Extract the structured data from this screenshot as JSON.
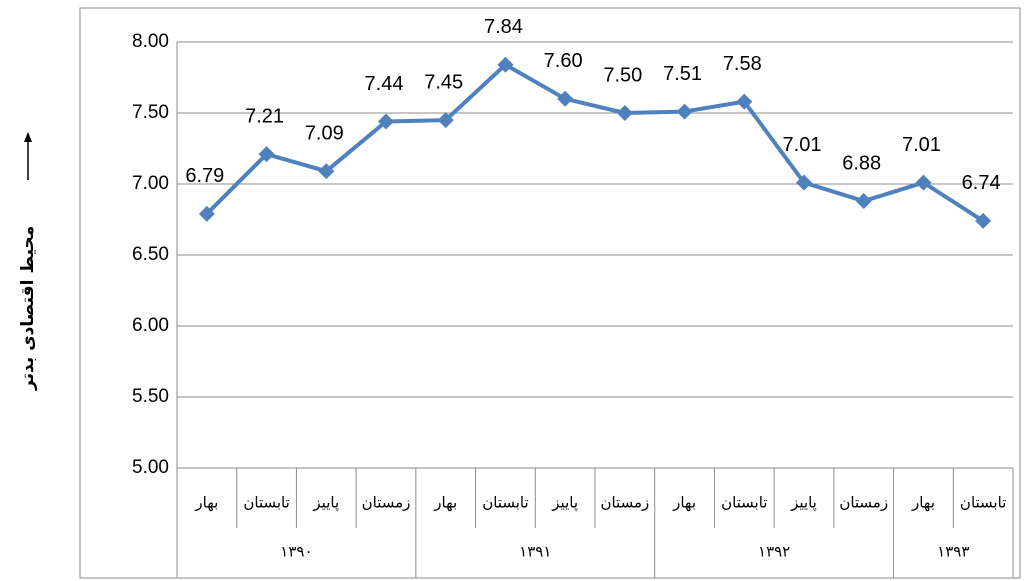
{
  "chart_data": {
    "type": "line",
    "y_label": "محیط اقتصادی بدتر",
    "categories": [
      "بهار",
      "تابستان",
      "پاییز",
      "زمستان",
      "بهار",
      "تابستان",
      "پاییز",
      "زمستان",
      "بهار",
      "تابستان",
      "پاییز",
      "زمستان",
      "بهار",
      "تابستان"
    ],
    "category_groups": [
      {
        "label": "۱۳۹۰",
        "size": 4
      },
      {
        "label": "۱۳۹۱",
        "size": 4
      },
      {
        "label": "۱۳۹۲",
        "size": 4
      },
      {
        "label": "۱۳۹۳",
        "size": 2
      }
    ],
    "values": [
      6.79,
      7.21,
      7.09,
      7.44,
      7.45,
      7.84,
      7.6,
      7.5,
      7.51,
      7.58,
      7.01,
      6.88,
      7.01,
      6.74
    ],
    "value_labels": [
      "6.79",
      "7.21",
      "7.09",
      "7.44",
      "7.45",
      "7.84",
      "7.60",
      "7.50",
      "7.51",
      "7.58",
      "7.01",
      "6.88",
      "7.01",
      "6.74"
    ],
    "color": "#4f81bd",
    "ylim": [
      5,
      8
    ],
    "yticks": [
      {
        "value": 5,
        "label": "5.00"
      },
      {
        "value": 5.5,
        "label": "5.50"
      },
      {
        "value": 6,
        "label": "6.00"
      },
      {
        "value": 6.5,
        "label": "6.50"
      },
      {
        "value": 7,
        "label": "7.00"
      },
      {
        "value": 7.5,
        "label": "7.50"
      },
      {
        "value": 8,
        "label": "8.00"
      }
    ],
    "grid": true
  }
}
